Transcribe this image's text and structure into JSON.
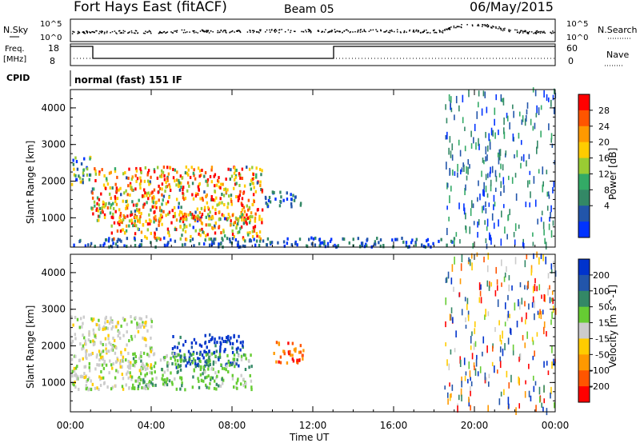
{
  "header": {
    "title": "Fort Hays East (fitACF)",
    "beam": "Beam 05",
    "date": "06/May/2015"
  },
  "top_panels": {
    "nsky_label": "N.Sky",
    "nsky_ticks": [
      "10^5",
      "10^0"
    ],
    "nsearch_label": "N.Search",
    "nsearch_ticks": [
      "10^5",
      "10^0"
    ],
    "freq_label_1": "Freq.",
    "freq_label_2": "[MHz]",
    "freq_ticks": [
      "18",
      "8"
    ],
    "nave_label": "Nave",
    "nave_ticks": [
      "60",
      "0"
    ],
    "cpid_label": "CPID",
    "cpid_value": "normal (fast) 151 IF"
  },
  "chart_data": [
    {
      "type": "heatmap",
      "name": "Power",
      "ylabel": "Slant Range [km]",
      "yticks": [
        "4000",
        "3000",
        "2000",
        "1000"
      ],
      "ylim": [
        200,
        4500
      ],
      "xlim": [
        0,
        24
      ],
      "colorbar": {
        "label": "Power [dB]",
        "ticks": [
          "28",
          "24",
          "20",
          "16",
          "12",
          "8",
          "4"
        ],
        "colors": [
          "#ff0000",
          "#ff5500",
          "#ff9900",
          "#ffcc00",
          "#99cc33",
          "#33aa66",
          "#338866",
          "#2255aa",
          "#0033ff"
        ]
      },
      "features": [
        {
          "t": [
            0.0,
            1.0
          ],
          "r": [
            1900,
            2700
          ],
          "level": "mixed"
        },
        {
          "t": [
            1.0,
            9.5
          ],
          "r": [
            900,
            2400
          ],
          "level": "high"
        },
        {
          "t": [
            2.0,
            9.5
          ],
          "r": [
            400,
            1100
          ],
          "level": "high"
        },
        {
          "t": [
            9.5,
            11.5
          ],
          "r": [
            1300,
            1700
          ],
          "level": "low"
        },
        {
          "t": [
            0.0,
            19.0
          ],
          "r": [
            200,
            450
          ],
          "level": "low"
        },
        {
          "t": [
            18.5,
            24.0
          ],
          "r": [
            200,
            4500
          ],
          "level": "sparse"
        }
      ]
    },
    {
      "type": "heatmap",
      "name": "Velocity",
      "ylabel": "Slant Range [km]",
      "yticks": [
        "4000",
        "3000",
        "2000",
        "1000"
      ],
      "ylim": [
        200,
        4500
      ],
      "xlim": [
        0,
        24
      ],
      "xticks": [
        "00:00",
        "04:00",
        "08:00",
        "12:00",
        "16:00",
        "20:00",
        "00:00"
      ],
      "xlabel": "Time UT",
      "colorbar": {
        "label": "Velocity [m s^-1]",
        "ticks": [
          "200",
          "100",
          "50",
          "15",
          "-15",
          "-50",
          "-100",
          "-200"
        ],
        "colors": [
          "#0033cc",
          "#2255aa",
          "#338866",
          "#66cc33",
          "#cccccc",
          "#ffcc00",
          "#ff9900",
          "#ff5500",
          "#ff0000"
        ]
      },
      "features": [
        {
          "t": [
            0.0,
            4.0
          ],
          "r": [
            800,
            2800
          ],
          "level": "gray"
        },
        {
          "t": [
            5.0,
            8.5
          ],
          "r": [
            1400,
            2300
          ],
          "level": "blue"
        },
        {
          "t": [
            3.0,
            9.0
          ],
          "r": [
            800,
            1800
          ],
          "level": "green"
        },
        {
          "t": [
            10.0,
            11.5
          ],
          "r": [
            1500,
            2100
          ],
          "level": "orange"
        },
        {
          "t": [
            18.5,
            24.0
          ],
          "r": [
            200,
            4500
          ],
          "level": "sparse"
        }
      ]
    }
  ]
}
